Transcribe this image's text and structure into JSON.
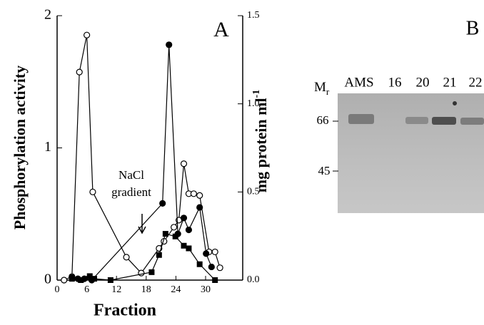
{
  "chart_data": {
    "type": "line",
    "panel_label": "A",
    "xlabel": "Fraction",
    "ylabel": "Phosphorylation activity",
    "y2label": "mg protein ml",
    "y2label_superscript": "-1",
    "annotation_lines": [
      "NaCl",
      "gradient"
    ],
    "xlim": [
      0,
      37.5
    ],
    "xticks": [
      0,
      6,
      12,
      18,
      24,
      30
    ],
    "ylim": [
      0,
      2
    ],
    "yticks": [
      0,
      1,
      2
    ],
    "y2lim": [
      0,
      1.5
    ],
    "y2ticks": [
      {
        "value": 0,
        "label": "0.0"
      },
      {
        "value": 0.5,
        "label": "0.5"
      },
      {
        "value": 1,
        "label": "1.0"
      },
      {
        "value": 1.5,
        "label": "1.5"
      }
    ],
    "series": [
      {
        "marker": "open-circle",
        "color": "#000000",
        "axis": "y2",
        "x": [
          1.4,
          3,
          4.5,
          6,
          7.2,
          14,
          17,
          20.6,
          21.6,
          23.6,
          24.6,
          25.6,
          26.6,
          27.6,
          28.8,
          30.7,
          31.9,
          32.9
        ],
        "values": [
          0,
          0.02,
          1.18,
          1.39,
          0.5,
          0.13,
          0.04,
          0.18,
          0.22,
          0.3,
          0.34,
          0.66,
          0.49,
          0.49,
          0.48,
          0.16,
          0.16,
          0.07
        ]
      },
      {
        "marker": "filled-circle",
        "color": "#000000",
        "axis": "y",
        "x": [
          3,
          4.2,
          5.5,
          7,
          21.3,
          22.6,
          24.4,
          25.6,
          26.6,
          28.8,
          30.1,
          31.2
        ],
        "values": [
          0.02,
          0.01,
          0.01,
          0.0,
          0.58,
          1.78,
          0.35,
          0.47,
          0.38,
          0.55,
          0.2,
          0.1
        ]
      },
      {
        "marker": "square",
        "color": "#000000",
        "axis": "y",
        "x": [
          3,
          4.8,
          6.6,
          7.5,
          10.8,
          19.1,
          20.6,
          21.9,
          23.9,
          25.6,
          26.6,
          28.8,
          31.9
        ],
        "values": [
          0.01,
          0.0,
          0.03,
          0.01,
          0.0,
          0.06,
          0.19,
          0.35,
          0.33,
          0.26,
          0.24,
          0.12,
          0
        ]
      }
    ]
  },
  "panel_b": {
    "label": "B",
    "mr_label": "M",
    "mr_subscript": "r",
    "lanes": [
      "AMS",
      "16",
      "20",
      "21",
      "22"
    ],
    "markers": [
      66,
      45
    ]
  }
}
